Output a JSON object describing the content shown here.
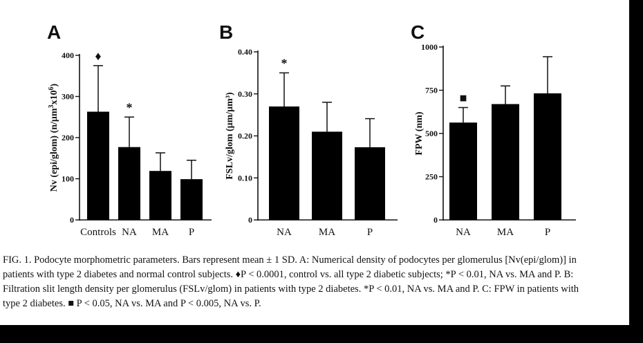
{
  "chart_data": [
    {
      "panel": "A",
      "type": "bar",
      "categories": [
        "Controls",
        "NA",
        "MA",
        "P"
      ],
      "values": [
        263,
        177,
        119,
        99
      ],
      "errors": [
        112,
        73,
        44,
        46
      ],
      "markers": [
        "♦",
        "*",
        "",
        ""
      ],
      "ylabel_parts": [
        "Nv (epi/glom) (n/μm",
        "3",
        "x10",
        "6",
        ")"
      ],
      "ylim": [
        0,
        400
      ],
      "yticks": [
        0,
        100,
        200,
        300,
        400
      ],
      "ytick_labels": [
        "0",
        "100",
        "200",
        "300",
        "400"
      ]
    },
    {
      "panel": "B",
      "type": "bar",
      "categories": [
        "NA",
        "MA",
        "P"
      ],
      "values": [
        0.27,
        0.21,
        0.173
      ],
      "errors": [
        0.08,
        0.07,
        0.068
      ],
      "markers": [
        "*",
        "",
        ""
      ],
      "ylabel": "FSLv/glom (μm/μm³)",
      "ylim": [
        0,
        0.4
      ],
      "yticks": [
        0,
        0.1,
        0.2,
        0.3,
        0.4
      ],
      "ytick_labels": [
        "0",
        "0.10",
        "0.20",
        "0.30",
        "0.40"
      ]
    },
    {
      "panel": "C",
      "type": "bar",
      "categories": [
        "NA",
        "MA",
        "P"
      ],
      "values": [
        563,
        670,
        732
      ],
      "errors": [
        87,
        105,
        212
      ],
      "markers": [
        "■",
        "",
        ""
      ],
      "ylabel": "FPW (nm)",
      "ylim": [
        0,
        1000
      ],
      "yticks": [
        0,
        250,
        500,
        750,
        1000
      ],
      "ytick_labels": [
        "0",
        "250",
        "500",
        "750",
        "1000"
      ]
    }
  ],
  "caption": {
    "line1": "FIG. 1. Podocyte morphometric parameters. Bars represent mean ± 1 SD. A: Numerical density of podocytes per glomerulus [Nv(epi/glom)] in",
    "line2": "patients with type 2 diabetes and normal control subjects. ♦P < 0.0001, control vs. all type 2 diabetic subjects; *P < 0.01, NA vs. MA and P. B:",
    "line3": "Filtration slit length density per glomerulus (FSLv/glom) in patients with type 2 diabetes. *P < 0.01, NA vs. MA and P. C: FPW in patients with",
    "line4": "type 2 diabetes. ■ P < 0.05, NA vs. MA and P < 0.005, NA vs. P."
  }
}
